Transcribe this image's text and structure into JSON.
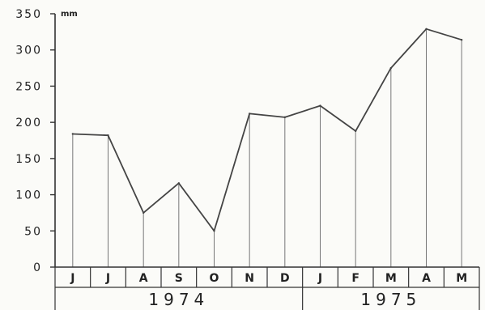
{
  "chart_data": {
    "type": "line",
    "ylabel": "mm",
    "ylim": [
      0,
      350
    ],
    "yticks": [
      "0",
      "50",
      "100",
      "150",
      "200",
      "250",
      "300",
      "350"
    ],
    "categories": [
      "J",
      "J",
      "A",
      "S",
      "O",
      "N",
      "D",
      "J",
      "F",
      "M",
      "A",
      "M"
    ],
    "values": [
      184,
      182,
      75,
      116,
      50,
      212,
      207,
      223,
      188,
      275,
      329,
      314
    ],
    "years": [
      "1974",
      "1975"
    ],
    "grid": false,
    "colors": {
      "line": "#444444",
      "axis": "#333333",
      "drop": "#777777"
    }
  }
}
